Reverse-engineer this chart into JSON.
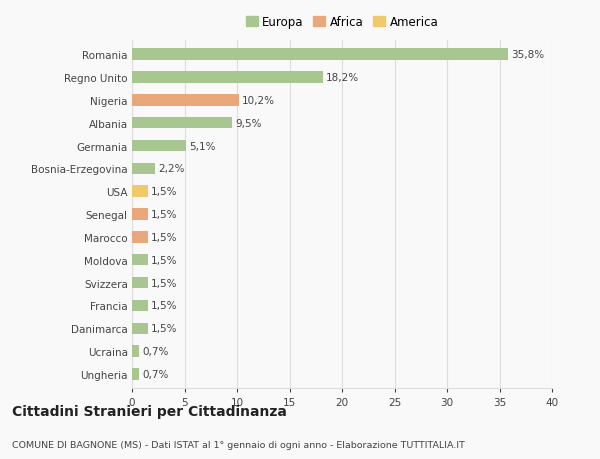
{
  "countries": [
    "Romania",
    "Regno Unito",
    "Nigeria",
    "Albania",
    "Germania",
    "Bosnia-Erzegovina",
    "USA",
    "Senegal",
    "Marocco",
    "Moldova",
    "Svizzera",
    "Francia",
    "Danimarca",
    "Ucraina",
    "Ungheria"
  ],
  "values": [
    35.8,
    18.2,
    10.2,
    9.5,
    5.1,
    2.2,
    1.5,
    1.5,
    1.5,
    1.5,
    1.5,
    1.5,
    1.5,
    0.7,
    0.7
  ],
  "labels": [
    "35,8%",
    "18,2%",
    "10,2%",
    "9,5%",
    "5,1%",
    "2,2%",
    "1,5%",
    "1,5%",
    "1,5%",
    "1,5%",
    "1,5%",
    "1,5%",
    "1,5%",
    "0,7%",
    "0,7%"
  ],
  "continents": [
    "Europa",
    "Europa",
    "Africa",
    "Europa",
    "Europa",
    "Europa",
    "America",
    "Africa",
    "Africa",
    "Europa",
    "Europa",
    "Europa",
    "Europa",
    "Europa",
    "Europa"
  ],
  "colors": {
    "Europa": "#a8c68f",
    "Africa": "#e8a87c",
    "America": "#f0c96a"
  },
  "legend_labels": [
    "Europa",
    "Africa",
    "America"
  ],
  "legend_colors": [
    "#a8c68f",
    "#e8a87c",
    "#f0c96a"
  ],
  "xlim": [
    0,
    40
  ],
  "xticks": [
    0,
    5,
    10,
    15,
    20,
    25,
    30,
    35,
    40
  ],
  "title": "Cittadini Stranieri per Cittadinanza",
  "subtitle": "COMUNE DI BAGNONE (MS) - Dati ISTAT al 1° gennaio di ogni anno - Elaborazione TUTTITALIA.IT",
  "background_color": "#f9f9f9",
  "bar_height": 0.5,
  "grid_color": "#dddddd",
  "text_color": "#444444",
  "label_fontsize": 7.5,
  "tick_fontsize": 7.5,
  "title_fontsize": 10,
  "subtitle_fontsize": 6.8
}
